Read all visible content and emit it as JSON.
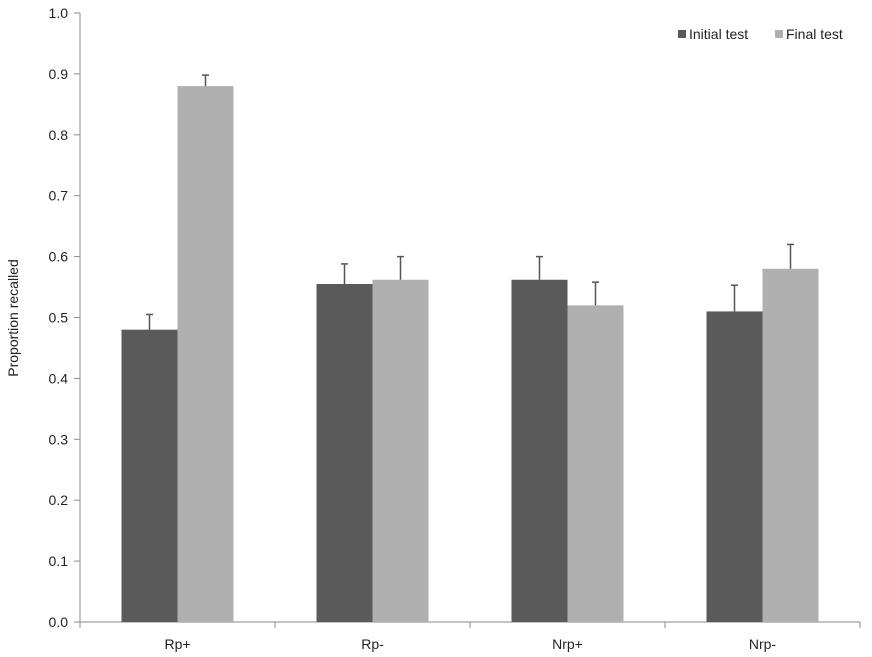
{
  "chart_data": {
    "type": "bar",
    "title": "",
    "xlabel": "",
    "ylabel": "Proportion recalled",
    "ylim": [
      0,
      1.0
    ],
    "yticks": [
      "0.0",
      "0.1",
      "0.2",
      "0.3",
      "0.4",
      "0.5",
      "0.6",
      "0.7",
      "0.8",
      "0.9",
      "1.0"
    ],
    "categories": [
      "Rp+",
      "Rp-",
      "Nrp+",
      "Nrp-"
    ],
    "series": [
      {
        "name": "Initial test",
        "color": "#5a5a5a",
        "values": [
          0.48,
          0.555,
          0.562,
          0.51
        ],
        "error_upper": [
          0.505,
          0.588,
          0.6,
          0.553
        ]
      },
      {
        "name": "Final test",
        "color": "#b0b0b0",
        "values": [
          0.88,
          0.562,
          0.52,
          0.58
        ],
        "error_upper": [
          0.898,
          0.6,
          0.558,
          0.62
        ]
      }
    ],
    "grid": false,
    "legend": "top-right"
  }
}
